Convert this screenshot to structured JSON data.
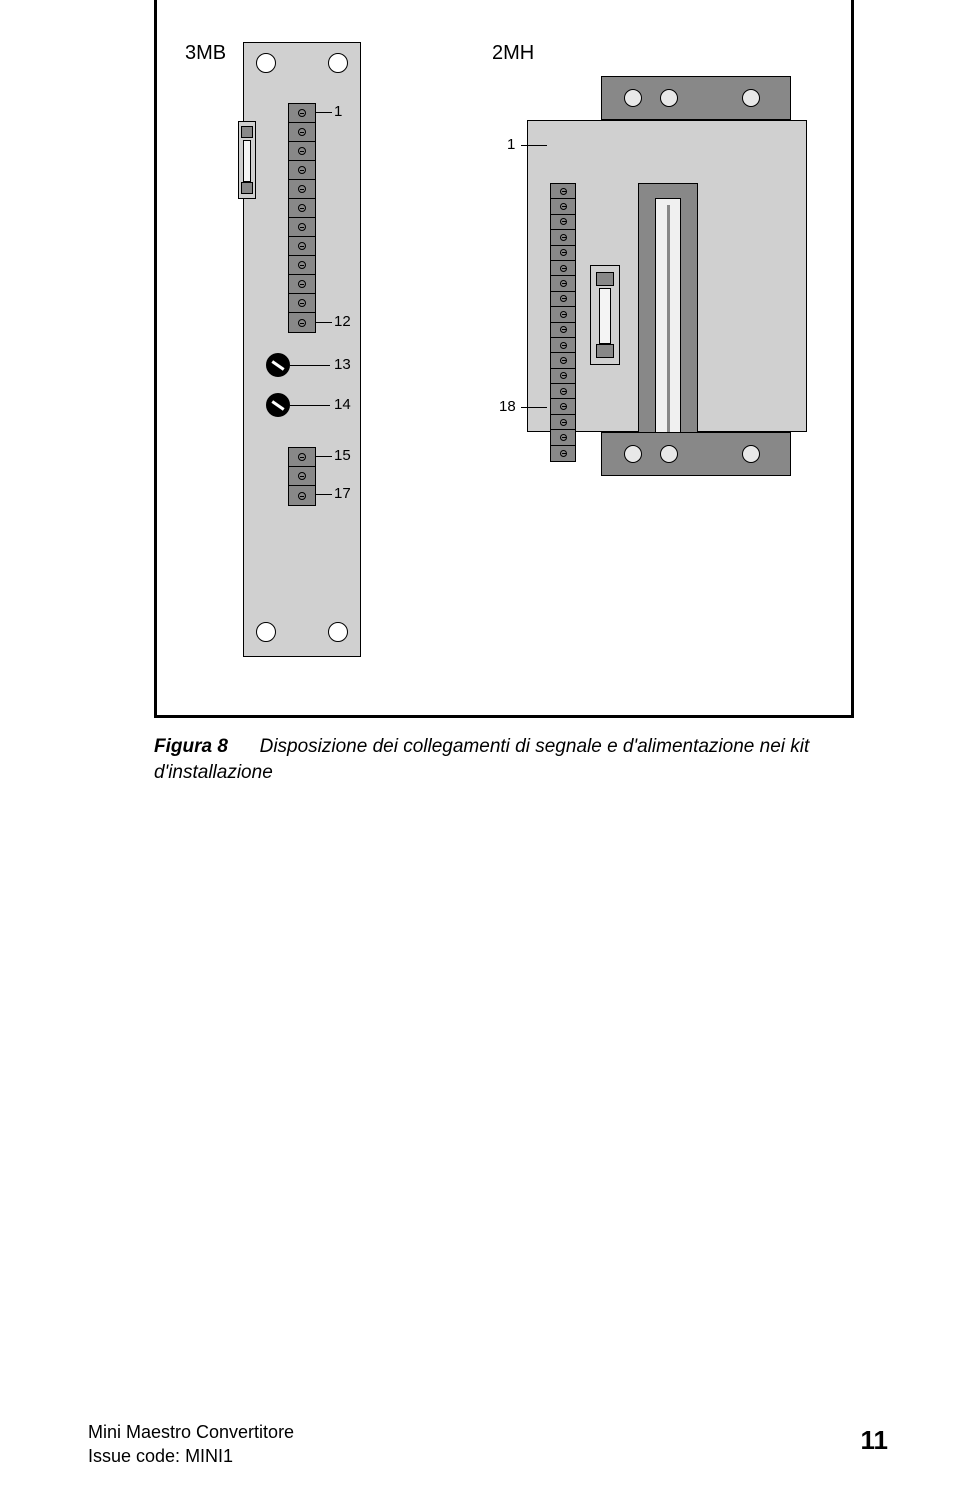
{
  "labels": {
    "left_board": "3MB",
    "right_board": "2MH"
  },
  "pins_3mb": {
    "top_block_start": "1",
    "top_block_end": "12",
    "pot1": "13",
    "pot2": "14",
    "bottom_block_start": "15",
    "bottom_block_end": "17"
  },
  "pins_2mh": {
    "start": "1",
    "end": "18"
  },
  "terminals": {
    "tb_3mb_a_count": 12,
    "tb_3mb_b_count": 3,
    "tb_2mh_count": 18
  },
  "caption": {
    "figure_label": "Figura 8",
    "text_line1": "Disposizione dei collegamenti di segnale e d'alimentazione nei kit",
    "text_line2": "d'installazione"
  },
  "footer": {
    "line1": "Mini Maestro Convertitore",
    "line2_prefix": "Issue code:  ",
    "issue_code": "MINI1",
    "page_number": "11"
  },
  "colors": {
    "panel_light": "#d0d0d0",
    "panel_dark": "#888888",
    "stroke": "#000000",
    "background": "#ffffff",
    "fuse_body": "#f4f4f4",
    "hole_fill": "#e8e8e8"
  }
}
